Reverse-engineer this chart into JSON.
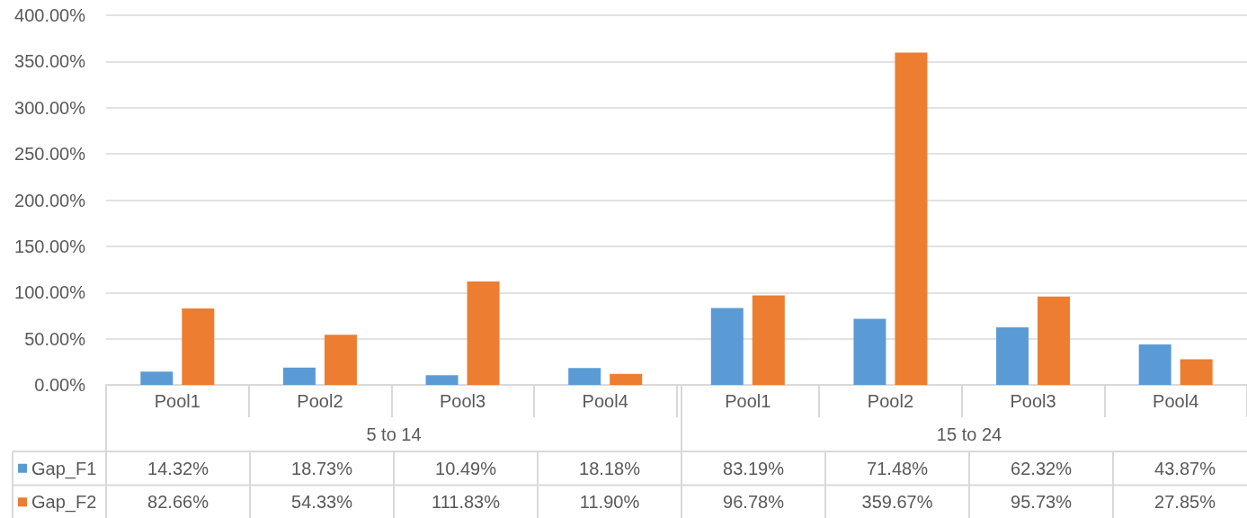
{
  "chart_data": {
    "type": "bar",
    "categories": [
      "Pool1",
      "Pool2",
      "Pool3",
      "Pool4",
      "Pool1",
      "Pool2",
      "Pool3",
      "Pool4"
    ],
    "annotations": [
      "5 to 14",
      "15 to 24"
    ],
    "series": [
      {
        "name": "Gap_F1",
        "color": "#5b9bd5",
        "values": [
          14.32,
          18.73,
          10.49,
          18.18,
          83.19,
          71.48,
          62.32,
          43.87
        ],
        "value_labels": [
          "14.32%",
          "18.73%",
          "10.49%",
          "18.18%",
          "83.19%",
          "71.48%",
          "62.32%",
          "43.87%"
        ]
      },
      {
        "name": "Gap_F2",
        "color": "#ed7d31",
        "values": [
          82.66,
          54.33,
          111.83,
          11.9,
          96.78,
          359.67,
          95.73,
          27.85
        ],
        "value_labels": [
          "82.66%",
          "54.33%",
          "111.83%",
          "11.90%",
          "96.78%",
          "359.67%",
          "95.73%",
          "27.85%"
        ]
      }
    ],
    "ylim": [
      0,
      400
    ],
    "yticks": [
      {
        "value": 0,
        "label": "0.00%"
      },
      {
        "value": 50,
        "label": "50.00%"
      },
      {
        "value": 100,
        "label": "100.00%"
      },
      {
        "value": 150,
        "label": "150.00%"
      },
      {
        "value": 200,
        "label": "200.00%"
      },
      {
        "value": 250,
        "label": "250.00%"
      },
      {
        "value": 300,
        "label": "300.00%"
      },
      {
        "value": 350,
        "label": "350.00%"
      },
      {
        "value": 400,
        "label": "400.00%"
      }
    ],
    "grid": "y",
    "legend": "bottom left"
  }
}
